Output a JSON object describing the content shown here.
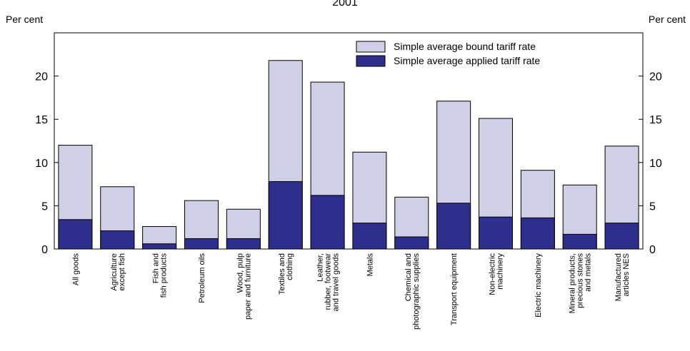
{
  "chart_data": {
    "type": "bar",
    "title": "2001",
    "ylabel_left": "Per cent",
    "ylabel_right": "Per cent",
    "ylim": [
      0,
      25
    ],
    "yticks": [
      0,
      5,
      10,
      15,
      20
    ],
    "grid": false,
    "legend_position": "top-right",
    "categories": [
      [
        "All goods"
      ],
      [
        "Agriculture",
        "except fish"
      ],
      [
        "Fish and",
        "fish products"
      ],
      [
        "Petroleum oils"
      ],
      [
        "Wood, pulp",
        "paper and furniture"
      ],
      [
        "Textiles and",
        "clothing"
      ],
      [
        "Leather,",
        "rubber, footwear",
        "and travel goods"
      ],
      [
        "Metals"
      ],
      [
        "Chemical and",
        "photographic supplies"
      ],
      [
        "Transport equipment"
      ],
      [
        "Non-electric",
        "machinery"
      ],
      [
        "Electric machinery"
      ],
      [
        "Mineral products,",
        "precious stones",
        "and metals"
      ],
      [
        "Manufactured",
        "articles NES"
      ]
    ],
    "series": [
      {
        "name": "Simple average bound tariff rate",
        "color": "#d0cfe6",
        "values": [
          12.0,
          7.2,
          2.6,
          5.6,
          4.6,
          21.8,
          19.3,
          11.2,
          6.0,
          17.1,
          15.1,
          9.1,
          7.4,
          11.9
        ]
      },
      {
        "name": "Simple average applied tariff rate",
        "color": "#2e2e8c",
        "values": [
          3.4,
          2.1,
          0.6,
          1.2,
          1.2,
          7.8,
          6.2,
          3.0,
          1.4,
          5.3,
          3.7,
          3.6,
          1.7,
          3.0
        ]
      }
    ],
    "style": "overlapping bars (applied rate drawn over bound rate)"
  }
}
